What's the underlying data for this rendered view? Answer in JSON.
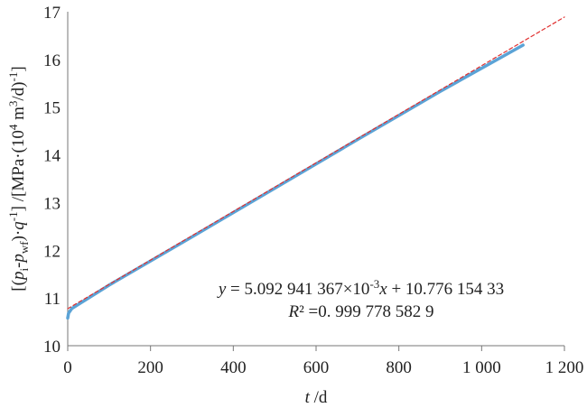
{
  "chart_data": {
    "type": "line",
    "x_label": [
      {
        "text": "t",
        "style": "italic"
      },
      {
        "text": " /d",
        "style": "normal"
      }
    ],
    "y_label": [
      {
        "text": "[(",
        "style": "normal"
      },
      {
        "text": "p",
        "style": "italic"
      },
      {
        "text": "i",
        "style": "sub"
      },
      {
        "text": "-",
        "style": "normal"
      },
      {
        "text": "p",
        "style": "italic"
      },
      {
        "text": "wf",
        "style": "sub"
      },
      {
        "text": ")·",
        "style": "normal"
      },
      {
        "text": "q",
        "style": "italic"
      },
      {
        "text": "-1",
        "style": "sup"
      },
      {
        "text": "] /[MPa·(10",
        "style": "normal"
      },
      {
        "text": "4",
        "style": "sup"
      },
      {
        "text": " m",
        "style": "normal"
      },
      {
        "text": "3",
        "style": "sup"
      },
      {
        "text": "/d)",
        "style": "normal"
      },
      {
        "text": "-1",
        "style": "sup"
      },
      {
        "text": "]",
        "style": "normal"
      }
    ],
    "annotations": [
      [
        {
          "text": "y",
          "style": "italic"
        },
        {
          "text": " = 5.092 941 367×10",
          "style": "normal"
        },
        {
          "text": "-3",
          "style": "sup"
        },
        {
          "text": "x",
          "style": "italic"
        },
        {
          "text": " + 10.776 154 33",
          "style": "normal"
        }
      ],
      [
        {
          "text": "R",
          "style": "italic"
        },
        {
          "text": "² =0. 999 778 582 9",
          "style": "normal"
        }
      ]
    ],
    "series": [
      {
        "color": "#5ba3d6",
        "width": 3.5,
        "dashed": false,
        "x": [
          0,
          2,
          10,
          100,
          300,
          500,
          700,
          900,
          1100
        ],
        "values": [
          10.58,
          10.68,
          10.78,
          11.27,
          12.28,
          13.3,
          14.32,
          15.33,
          16.3
        ]
      },
      {
        "color": "#e03030",
        "width": 1.2,
        "dashed": true,
        "x": [
          0,
          1200
        ],
        "values": [
          10.776,
          16.888
        ]
      }
    ],
    "xlim": [
      0,
      1200
    ],
    "xticks": [
      0,
      200,
      400,
      600,
      800,
      {
        "value": 1000,
        "label": "1 000"
      },
      {
        "value": 1200,
        "label": "1 200"
      }
    ],
    "ylim": [
      10,
      17
    ],
    "yticks": [
      10,
      11,
      12,
      13,
      14,
      15,
      16,
      17
    ]
  }
}
